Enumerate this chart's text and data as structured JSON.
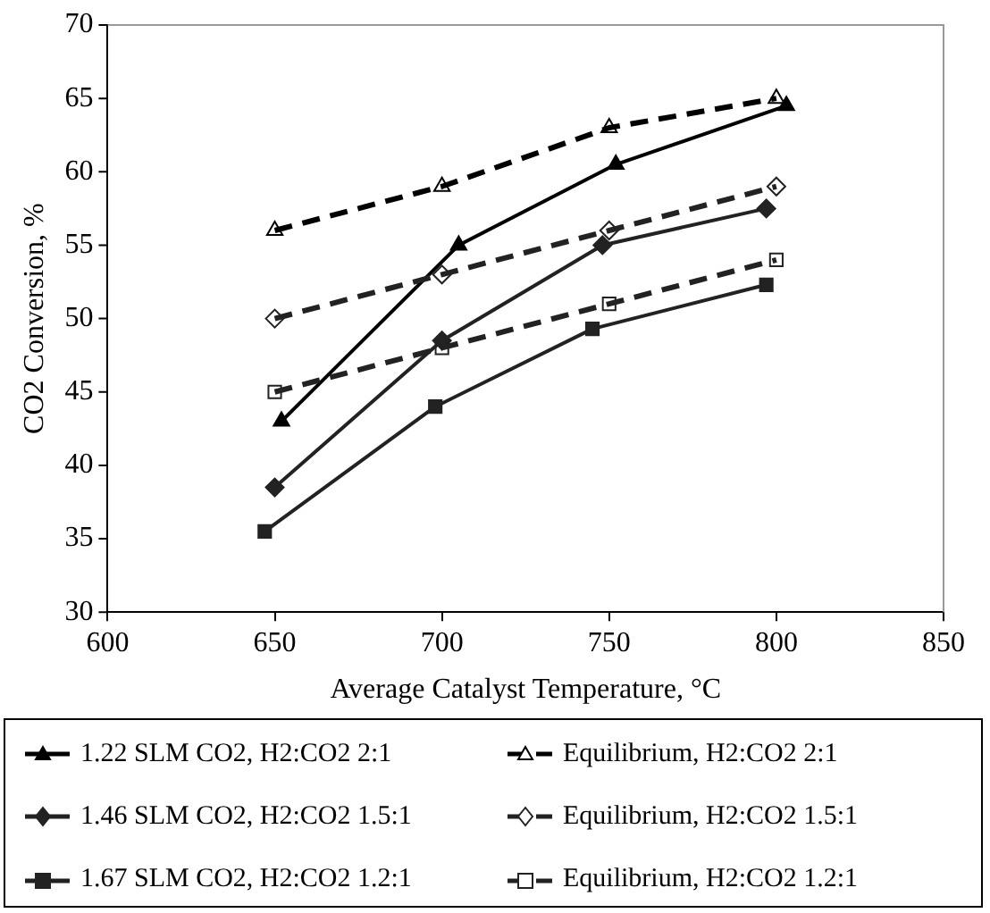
{
  "chart_data": {
    "type": "line",
    "xlabel": "Average Catalyst Temperature, °C",
    "ylabel": "CO2 Conversion, %",
    "xlim": [
      600,
      850
    ],
    "xticks": [
      600,
      650,
      700,
      750,
      800,
      850
    ],
    "ylim": [
      30,
      70
    ],
    "yticks": [
      30,
      35,
      40,
      45,
      50,
      55,
      60,
      65,
      70
    ],
    "grid": false,
    "legend": "bottom",
    "series": [
      {
        "name": "1.22 SLM CO2, H2:CO2 2:1",
        "color": "#000000",
        "marker": "triangle",
        "line_style": "solid",
        "x": [
          652,
          705,
          752,
          803
        ],
        "values": [
          43,
          55,
          60.5,
          64.5
        ]
      },
      {
        "name": "Equilibrium, H2:CO2 2:1",
        "color": "#000000",
        "marker": "triangle",
        "line_style": "dashed",
        "x": [
          650,
          700,
          750,
          800
        ],
        "values": [
          56,
          59,
          63,
          65
        ]
      },
      {
        "name": "1.46 SLM CO2, H2:CO2 1.5:1",
        "color": "#222222",
        "marker": "diamond",
        "line_style": "solid",
        "x": [
          650,
          700,
          748,
          797
        ],
        "values": [
          38.5,
          48.5,
          55,
          57.5
        ]
      },
      {
        "name": "Equilibrium, H2:CO2 1.5:1",
        "color": "#222222",
        "marker": "diamond",
        "line_style": "dashed",
        "x": [
          650,
          700,
          750,
          800
        ],
        "values": [
          50,
          53,
          56,
          59
        ]
      },
      {
        "name": "1.67 SLM CO2, H2:CO2 1.2:1",
        "color": "#222222",
        "marker": "square",
        "line_style": "solid",
        "x": [
          647,
          698,
          745,
          797
        ],
        "values": [
          35.5,
          44,
          49.3,
          52.3
        ]
      },
      {
        "name": "Equilibrium, H2:CO2 1.2:1",
        "color": "#222222",
        "marker": "square",
        "line_style": "dashed",
        "x": [
          650,
          700,
          750,
          800
        ],
        "values": [
          45,
          48,
          51,
          54
        ]
      }
    ]
  }
}
